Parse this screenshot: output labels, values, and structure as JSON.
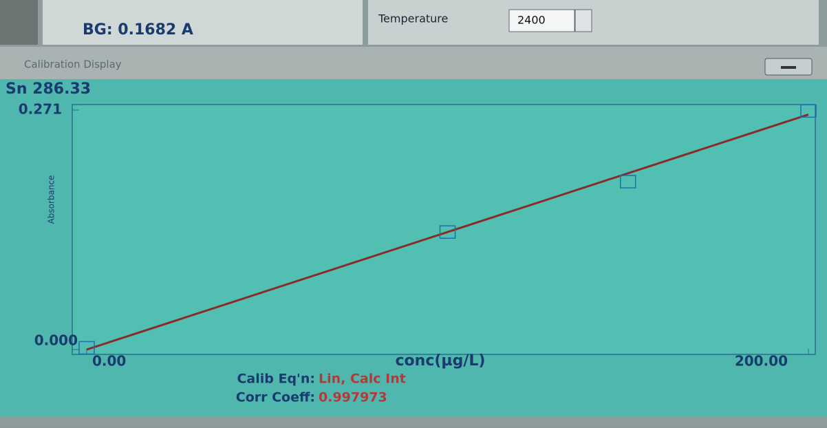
{
  "header": {
    "background": "BG: 0.1682 A",
    "temperature_label": "Temperature",
    "temperature_value": "2400"
  },
  "window": {
    "title": "Calibration Display"
  },
  "chart_data": {
    "type": "scatter",
    "title": "Sn 286.33",
    "y_label": "Absorbance",
    "x_label": "conc(µg/L)",
    "x": [
      0,
      100,
      150,
      200
    ],
    "values": [
      0.002,
      0.133,
      0.19,
      0.27
    ],
    "color": "#1f6fa8",
    "fit": {
      "x": [
        0,
        200
      ],
      "values": [
        0,
        0.266
      ],
      "color": "#8b2a2a"
    },
    "xlim": [
      0,
      200
    ],
    "ylim": [
      0,
      0.271
    ],
    "xticks": [
      {
        "value": 0,
        "label": "0.00"
      },
      {
        "value": 200,
        "label": "200.00"
      }
    ],
    "yticks": [
      {
        "value": 0,
        "label": "0.000"
      },
      {
        "value": 0.271,
        "label": "0.271"
      }
    ]
  },
  "footer": {
    "equation_label": "Calib Eq'n:",
    "equation": "Lin, Calc Int",
    "corr_label": "Corr Coeff:",
    "corr": "0.997973"
  }
}
